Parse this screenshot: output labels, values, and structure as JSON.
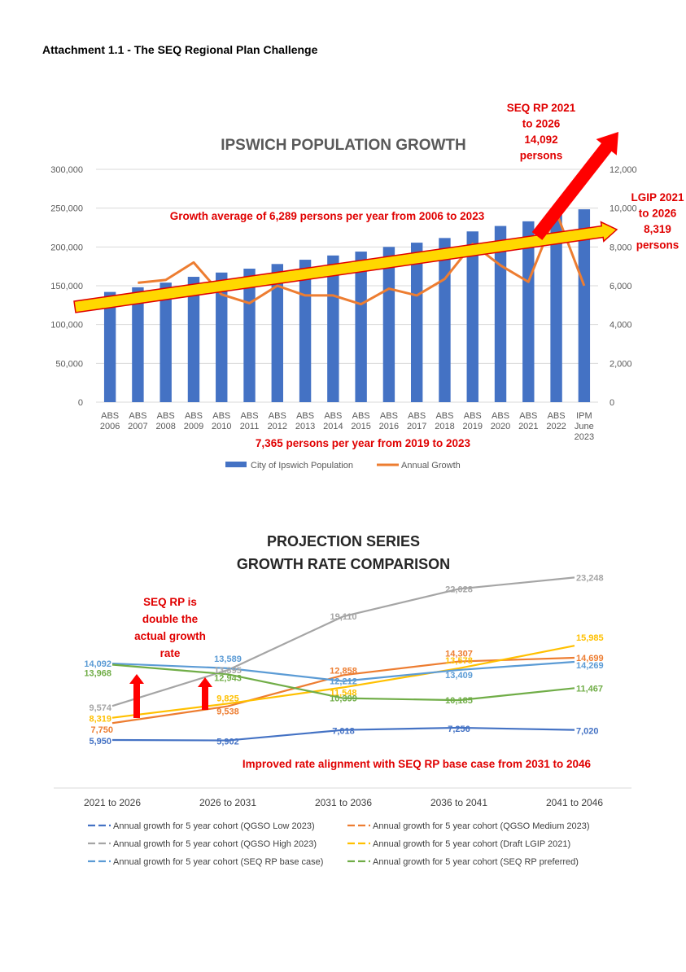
{
  "document": {
    "heading": "Attachment 1.1 - The SEQ Regional Plan Challenge"
  },
  "chart_data": [
    {
      "type": "bar",
      "title": "IPSWICH POPULATION GROWTH",
      "categories": [
        [
          "ABS",
          "2006"
        ],
        [
          "ABS",
          "2007"
        ],
        [
          "ABS",
          "2008"
        ],
        [
          "ABS",
          "2009"
        ],
        [
          "ABS",
          "2010"
        ],
        [
          "ABS",
          "2011"
        ],
        [
          "ABS",
          "2012"
        ],
        [
          "ABS",
          "2013"
        ],
        [
          "ABS",
          "2014"
        ],
        [
          "ABS",
          "2015"
        ],
        [
          "ABS",
          "2016"
        ],
        [
          "ABS",
          "2017"
        ],
        [
          "ABS",
          "2018"
        ],
        [
          "ABS",
          "2019"
        ],
        [
          "ABS",
          "2020"
        ],
        [
          "ABS",
          "2021"
        ],
        [
          "ABS",
          "2022"
        ],
        [
          "IPM",
          "June",
          "2023"
        ]
      ],
      "series": [
        {
          "name": "City of Ipswich Population",
          "type": "bar",
          "axis": "left",
          "color": "#4472C4",
          "values": [
            142000,
            148000,
            154000,
            161500,
            167000,
            172000,
            178000,
            183500,
            189000,
            194000,
            200000,
            205500,
            211500,
            220000,
            227000,
            233000,
            242000,
            248500
          ]
        },
        {
          "name": "Annual Growth",
          "type": "line",
          "axis": "right",
          "color": "#ED7D31",
          "values": [
            null,
            6150,
            6300,
            7200,
            5550,
            5100,
            6000,
            5500,
            5500,
            5050,
            5850,
            5500,
            6350,
            8150,
            7050,
            6200,
            9800,
            6000
          ]
        }
      ],
      "y_left": {
        "min": 0,
        "max": 300000,
        "ticks": [
          "0",
          "50,000",
          "100,000",
          "150,000",
          "200,000",
          "250,000",
          "300,000"
        ]
      },
      "y_right": {
        "min": 0,
        "max": 12000,
        "ticks": [
          "0",
          "2,000",
          "4,000",
          "6,000",
          "8,000",
          "10,000",
          "12,000"
        ]
      },
      "legend_position": "bottom",
      "annotations": {
        "trend_label": "Growth average of 6,289 persons per year from 2006 to 2023",
        "recent_label": "7,365 persons per year from 2019 to 2023",
        "seq_rp": [
          "SEQ RP 2021",
          "to 2026",
          "14,092",
          "persons"
        ],
        "lgip": [
          "LGIP 2021",
          "to 2026",
          "8,319",
          "persons"
        ]
      }
    },
    {
      "type": "line",
      "title": [
        "PROJECTION SERIES",
        "GROWTH RATE COMPARISON"
      ],
      "categories": [
        "2021 to 2026",
        "2026 to 2031",
        "2031 to 2036",
        "2036 to 2041",
        "2041 to 2046"
      ],
      "series": [
        {
          "name": "Annual growth for 5 year cohort (QGSO Low 2023)",
          "color": "#4472C4",
          "values": [
            5950,
            5902,
            7018,
            7256,
            7020
          ],
          "labels": [
            "5,950",
            "5,902",
            "7,018",
            "7,256",
            "7,020"
          ]
        },
        {
          "name": "Annual growth for 5 year cohort (QGSO Medium 2023)",
          "color": "#ED7D31",
          "values": [
            7750,
            9538,
            12858,
            14307,
            14699
          ],
          "labels": [
            "7,750",
            "9,538",
            "12,858",
            "14,307",
            "14,699"
          ]
        },
        {
          "name": "Annual growth for 5 year cohort (QGSO High 2023)",
          "color": "#A5A5A5",
          "values": [
            9574,
            13395,
            19110,
            22028,
            23248
          ],
          "labels": [
            "9,574",
            "13,395",
            "19,110",
            "22,028",
            "23,248"
          ]
        },
        {
          "name": "Annual growth for 5 year cohort (Draft LGIP 2021)",
          "color": "#FFC000",
          "values": [
            8319,
            9825,
            11548,
            13578,
            15985
          ],
          "labels": [
            "8,319",
            "9,825",
            "11,548",
            "13,578",
            "15,985"
          ]
        },
        {
          "name": "Annual growth for 5 year cohort (SEQ RP base case)",
          "color": "#5B9BD5",
          "values": [
            14092,
            13589,
            12212,
            13409,
            14269
          ],
          "labels": [
            "14,092",
            "13,589",
            "12,212",
            "13,409",
            "14,269"
          ]
        },
        {
          "name": "Annual growth for 5 year cohort (SEQ RP preferred)",
          "color": "#70AD47",
          "values": [
            13968,
            12943,
            10399,
            10185,
            11467
          ],
          "labels": [
            "13,968",
            "12,943",
            "10,399",
            "10,185",
            "11,467"
          ]
        }
      ],
      "legend_position": "bottom",
      "annotations": {
        "seq_rp_note": [
          "SEQ RP is",
          "double the",
          "actual growth",
          "rate"
        ],
        "alignment_note": "Improved rate alignment with SEQ RP base case from 2031 to 2046"
      }
    }
  ]
}
